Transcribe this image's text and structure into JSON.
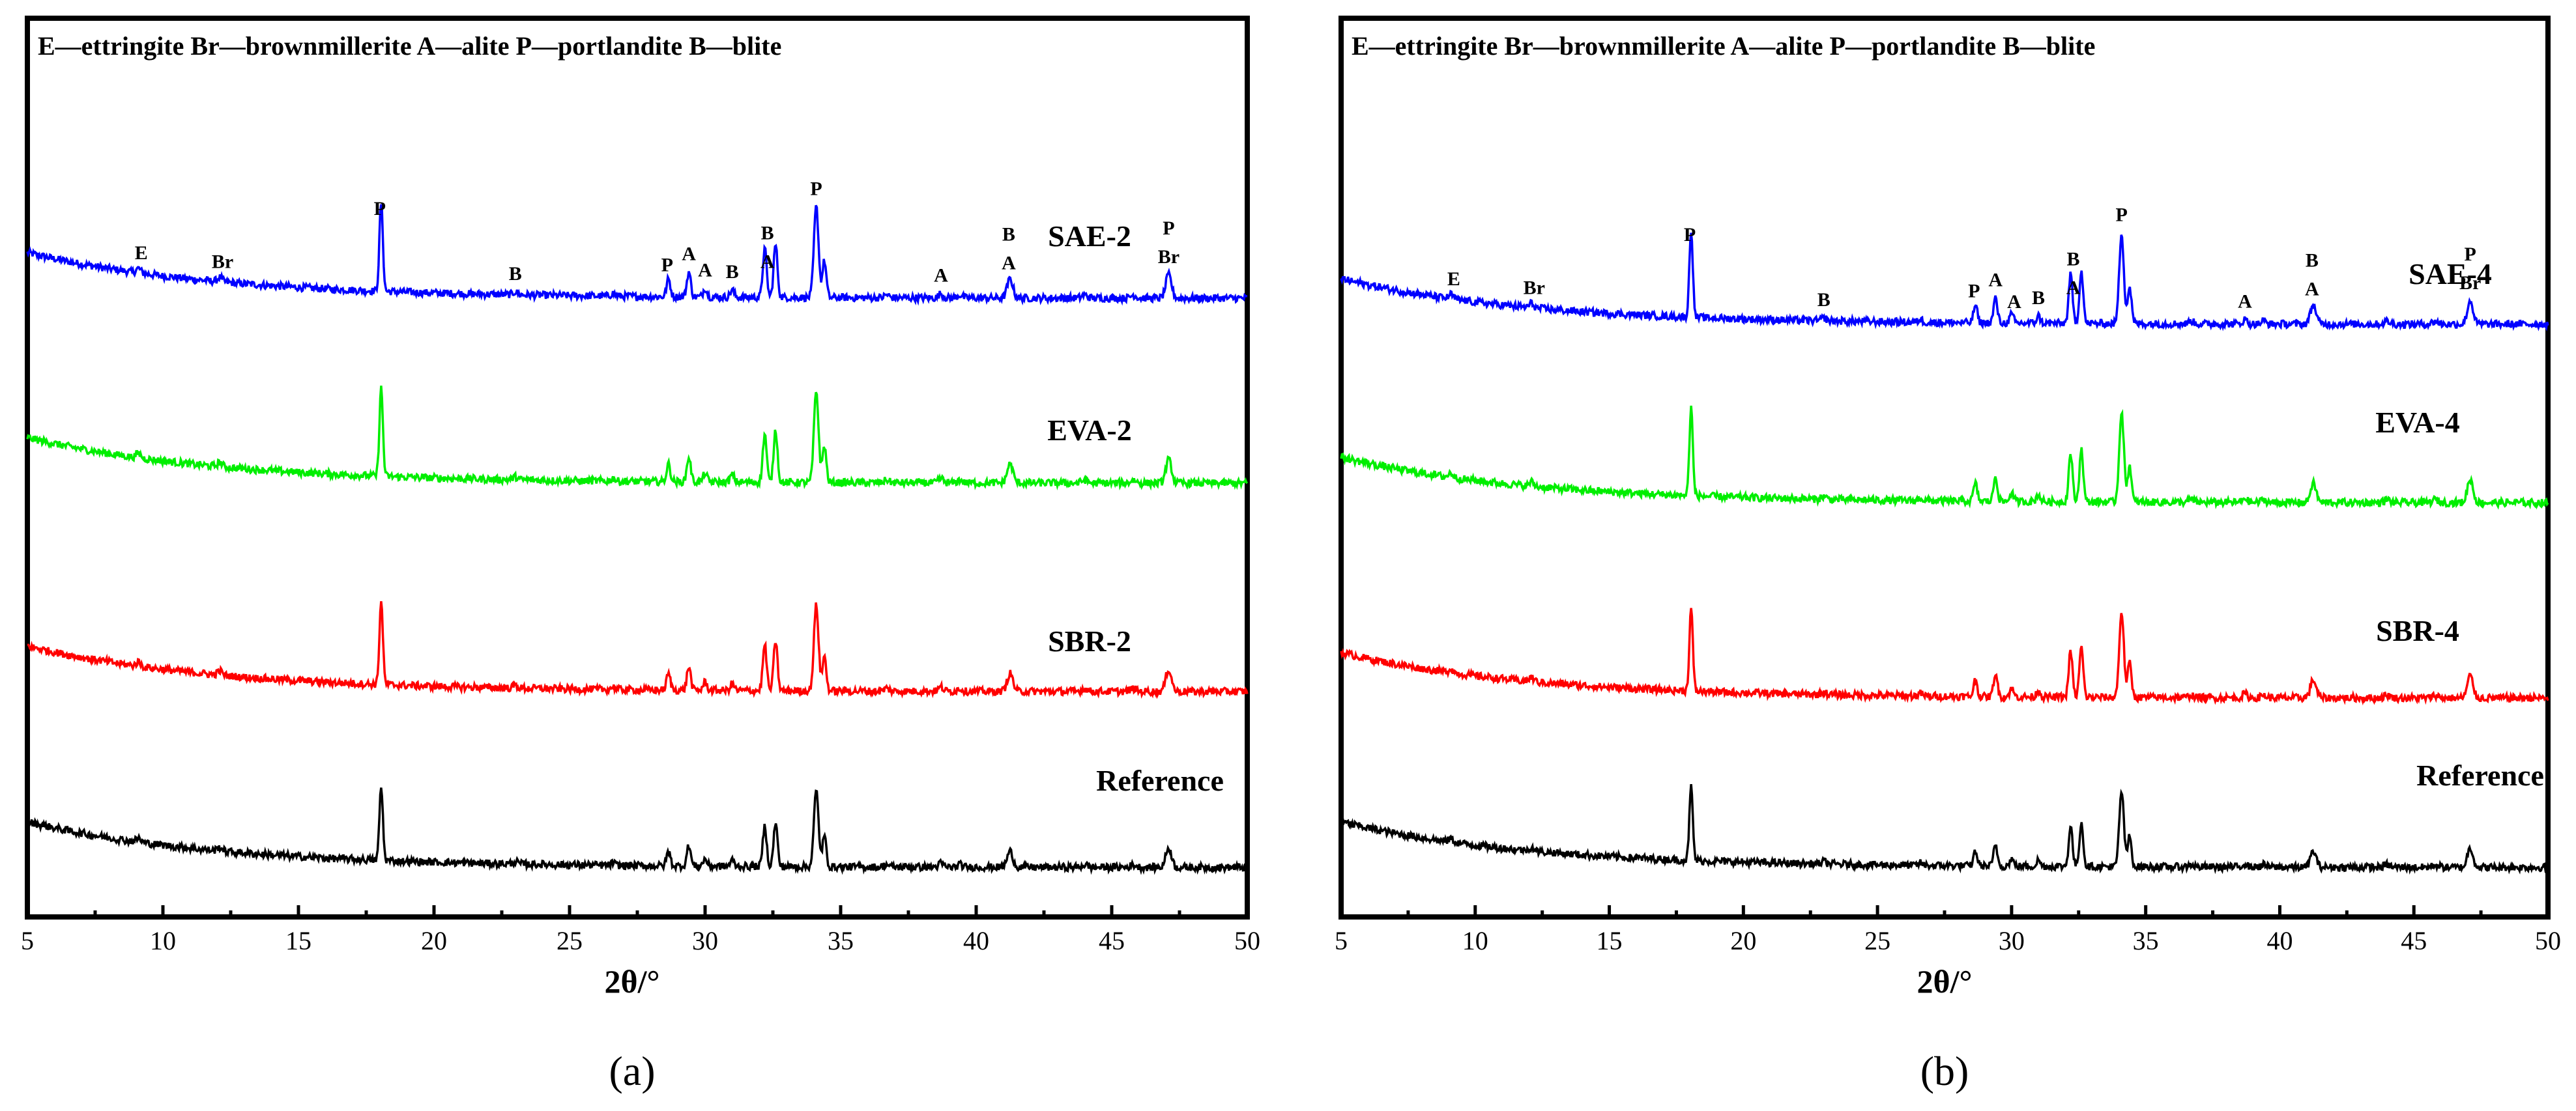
{
  "chart_data": [
    {
      "type": "line",
      "panel_label": "(a)",
      "legend": "E—ettringite Br—brownmillerite A—alite P—portlandite B—blite",
      "xlabel": "2θ/°",
      "xlim": [
        5,
        50
      ],
      "x_ticks": [
        "5",
        "10",
        "15",
        "20",
        "25",
        "30",
        "35",
        "40",
        "45",
        "50"
      ],
      "series": [
        {
          "name": "SAE-2",
          "color": "#0000ff"
        },
        {
          "name": "EVA-2",
          "color": "#00ee00"
        },
        {
          "name": "SBR-2",
          "color": "#ff0000"
        },
        {
          "name": "Reference",
          "color": "#000000"
        }
      ],
      "peak_labels": [
        {
          "x": 9.2,
          "text": "E"
        },
        {
          "x": 12.2,
          "text": "Br"
        },
        {
          "x": 18.0,
          "text": "P"
        },
        {
          "x": 23.0,
          "text": "B"
        },
        {
          "x": 28.6,
          "text": "P"
        },
        {
          "x": 29.4,
          "text": "A"
        },
        {
          "x": 30.0,
          "text": "A"
        },
        {
          "x": 31.0,
          "text": "B"
        },
        {
          "x": 32.3,
          "text": "B"
        },
        {
          "x": 32.3,
          "text": "A"
        },
        {
          "x": 34.1,
          "text": "P"
        },
        {
          "x": 38.7,
          "text": "A"
        },
        {
          "x": 41.2,
          "text": "B"
        },
        {
          "x": 41.2,
          "text": "A"
        },
        {
          "x": 47.1,
          "text": "P"
        },
        {
          "x": 47.1,
          "text": "Br"
        }
      ]
    },
    {
      "type": "line",
      "panel_label": "(b)",
      "legend": "E—ettringite Br—brownmillerite A—alite P—portlandite B—blite",
      "xlabel": "2θ/°",
      "xlim": [
        5,
        50
      ],
      "x_ticks": [
        "5",
        "10",
        "15",
        "20",
        "25",
        "30",
        "35",
        "40",
        "45",
        "50"
      ],
      "series": [
        {
          "name": "SAE-4",
          "color": "#0000ff"
        },
        {
          "name": "EVA-4",
          "color": "#00ee00"
        },
        {
          "name": "SBR-4",
          "color": "#ff0000"
        },
        {
          "name": "Reference",
          "color": "#000000"
        }
      ],
      "peak_labels": [
        {
          "x": 9.2,
          "text": "E"
        },
        {
          "x": 12.2,
          "text": "Br"
        },
        {
          "x": 18.0,
          "text": "P"
        },
        {
          "x": 23.0,
          "text": "B"
        },
        {
          "x": 28.6,
          "text": "P"
        },
        {
          "x": 29.4,
          "text": "A"
        },
        {
          "x": 30.1,
          "text": "A"
        },
        {
          "x": 31.0,
          "text": "B"
        },
        {
          "x": 32.3,
          "text": "B"
        },
        {
          "x": 32.3,
          "text": "A"
        },
        {
          "x": 34.1,
          "text": "P"
        },
        {
          "x": 38.7,
          "text": "A"
        },
        {
          "x": 41.2,
          "text": "B"
        },
        {
          "x": 41.2,
          "text": "A"
        },
        {
          "x": 47.1,
          "text": "P"
        },
        {
          "x": 47.1,
          "text": "Br"
        }
      ]
    }
  ]
}
